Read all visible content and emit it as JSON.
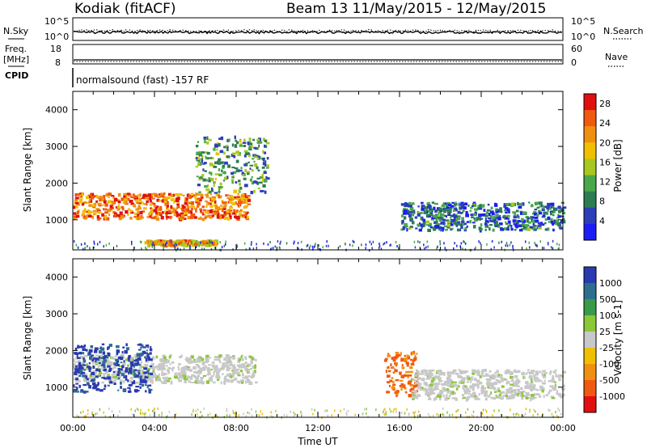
{
  "header": {
    "station": "Kodiak (fitACF)",
    "beam_range": "Beam 13 11/May/2015 - 12/May/2015"
  },
  "top_panels": {
    "nsky_label": "N.Sky",
    "nsearch_label": "N.Search",
    "count_tick_top": "10^5",
    "count_tick_bottom": "10^0",
    "freq_label_line1": "Freq.",
    "freq_label_line2": "[MHz]",
    "freq_tick_top": "18",
    "freq_tick_bottom": "8",
    "nave_label": "Nave",
    "nave_tick_top": "60",
    "nave_tick_bottom": "0",
    "cpid_label": "CPID",
    "cpid_value": "normalsound (fast) -157 RF"
  },
  "chart_data": [
    {
      "type": "heatmap",
      "title": "",
      "xlabel": "Time UT",
      "ylabel": "Slant Range [km]",
      "xlim": [
        0,
        24
      ],
      "ylim": [
        180,
        4500
      ],
      "x_ticks": [
        "00:00",
        "04:00",
        "08:00",
        "12:00",
        "16:00",
        "20:00",
        "00:00"
      ],
      "y_ticks": [
        1000,
        2000,
        3000,
        4000
      ],
      "colorbar": {
        "label": "Power [dB]",
        "ticks": [
          4,
          8,
          12,
          16,
          20,
          24,
          28
        ],
        "range": [
          0,
          30
        ],
        "colors": [
          "#1d1df5",
          "#2c3fb8",
          "#2e7d52",
          "#4aa84a",
          "#a8c820",
          "#f0c000",
          "#f09010",
          "#f05a10",
          "#e01010"
        ]
      },
      "features": [
        {
          "name": "main band",
          "time_start": 0.0,
          "time_end": 8.6,
          "range_start": 1050,
          "range_end": 1750,
          "peak_db": 26
        },
        {
          "name": "near band",
          "time_start": 3.5,
          "time_end": 7.0,
          "range_start": 330,
          "range_end": 470,
          "peak_db": 22
        },
        {
          "name": "upper echoes",
          "time_start": 6.0,
          "time_end": 9.5,
          "range_start": 1750,
          "range_end": 3300,
          "peak_db": 10
        },
        {
          "name": "evening band",
          "time_start": 16.0,
          "time_end": 24.0,
          "range_start": 750,
          "range_end": 1500,
          "peak_db": 8
        }
      ]
    },
    {
      "type": "heatmap",
      "title": "",
      "xlabel": "Time UT",
      "ylabel": "Slant Range [km]",
      "xlim": [
        0,
        24
      ],
      "ylim": [
        180,
        4500
      ],
      "x_ticks": [
        "00:00",
        "04:00",
        "08:00",
        "12:00",
        "16:00",
        "20:00",
        "00:00"
      ],
      "y_ticks": [
        1000,
        2000,
        3000,
        4000
      ],
      "colorbar": {
        "label": "Velocity [m s-1]",
        "ticks": [
          1000,
          500,
          100,
          25,
          -25,
          -100,
          -500,
          -1000
        ],
        "colors": [
          "#2a3ab0",
          "#2e6e8e",
          "#3a9a4a",
          "#8ac83a",
          "#c8c8c8",
          "#f0c000",
          "#f09010",
          "#f05a10",
          "#e01010"
        ]
      },
      "features": [
        {
          "name": "ground scatter band",
          "time_start": 0.0,
          "time_end": 9.0,
          "range_start": 1150,
          "range_end": 1900,
          "velocity": 0
        },
        {
          "name": "receding echoes",
          "time_start": 0.0,
          "time_end": 3.8,
          "range_start": 900,
          "range_end": 2200,
          "velocity": 400
        },
        {
          "name": "approaching echoes",
          "time_start": 15.2,
          "time_end": 16.8,
          "range_start": 800,
          "range_end": 2000,
          "velocity": -400
        },
        {
          "name": "evening ground scatter",
          "time_start": 16.5,
          "time_end": 24.0,
          "range_start": 700,
          "range_end": 1500,
          "velocity": 0
        }
      ]
    }
  ]
}
